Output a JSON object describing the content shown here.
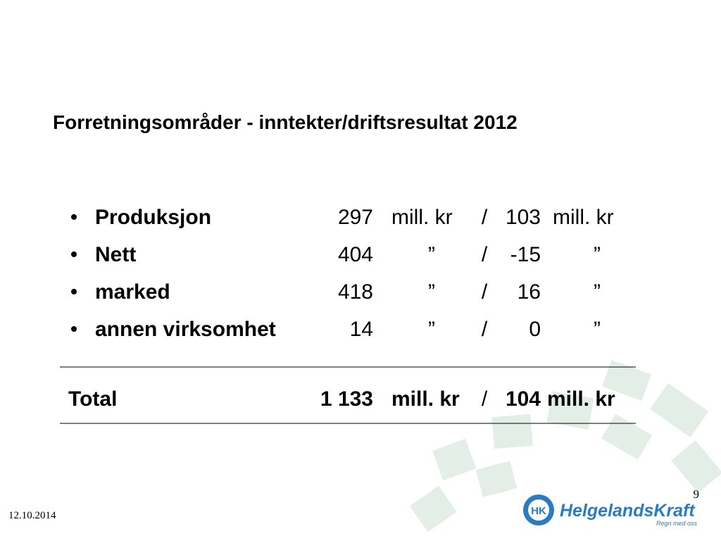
{
  "header": {
    "title": "Forretningsområder - inntekter/driftsresultat 2012"
  },
  "table": {
    "rows": [
      [
        "Produksjon",
        "297",
        "mill. kr",
        "/",
        "103",
        "mill. kr"
      ],
      [
        "Nett",
        "404",
        "”",
        "/",
        "-15",
        "”"
      ],
      [
        "marked",
        "418",
        "”",
        "/",
        "16",
        "”"
      ],
      [
        "annen virksomhet",
        "14",
        "”",
        "/",
        "0",
        "”"
      ]
    ],
    "total": [
      "Total",
      "1 133",
      "mill. kr",
      "/",
      "104",
      "mill. kr"
    ]
  },
  "footer": {
    "date": "12.10.2014",
    "page": "9"
  },
  "logo": {
    "mark": "HK",
    "name": "HelgelandsKraft",
    "slogan": "Regn med oss"
  }
}
